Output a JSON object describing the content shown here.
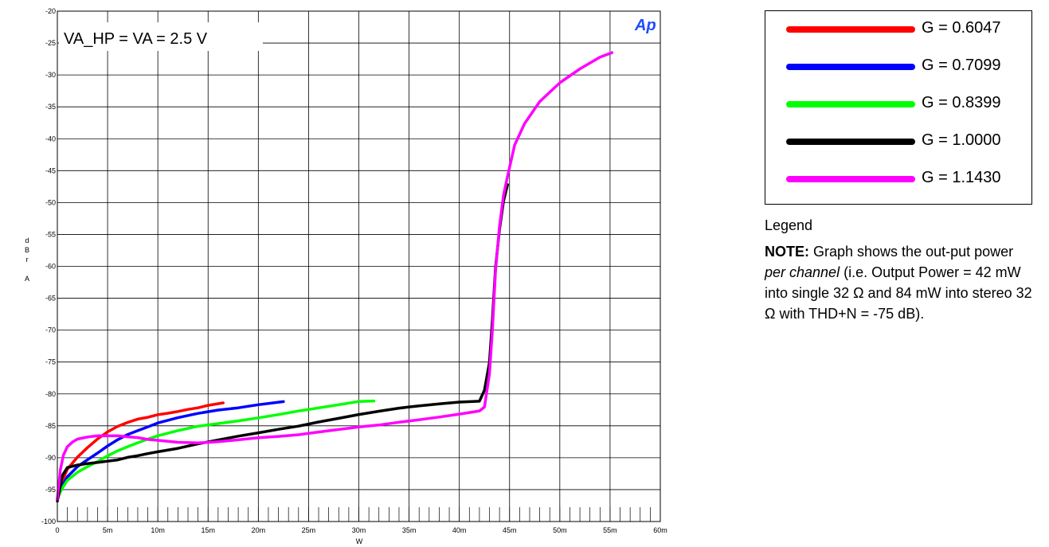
{
  "chart_data": {
    "type": "line",
    "title": "",
    "annotation": "VA_HP = VA = 2.5 V",
    "logo": "Ap",
    "xlabel": "W",
    "ylabel": [
      "d",
      "B",
      "r",
      "",
      "A"
    ],
    "xlim": [
      0,
      0.06
    ],
    "ylim": [
      -100,
      -20
    ],
    "xticks": [
      {
        "value": 0,
        "label": "0"
      },
      {
        "value": 0.005,
        "label": "5m"
      },
      {
        "value": 0.01,
        "label": "10m"
      },
      {
        "value": 0.015,
        "label": "15m"
      },
      {
        "value": 0.02,
        "label": "20m"
      },
      {
        "value": 0.025,
        "label": "25m"
      },
      {
        "value": 0.03,
        "label": "30m"
      },
      {
        "value": 0.035,
        "label": "35m"
      },
      {
        "value": 0.04,
        "label": "40m"
      },
      {
        "value": 0.045,
        "label": "45m"
      },
      {
        "value": 0.05,
        "label": "50m"
      },
      {
        "value": 0.055,
        "label": "55m"
      },
      {
        "value": 0.06,
        "label": "60m"
      }
    ],
    "yticks": [
      {
        "value": -20,
        "label": "-20"
      },
      {
        "value": -25,
        "label": "-25"
      },
      {
        "value": -30,
        "label": "-30"
      },
      {
        "value": -35,
        "label": "-35"
      },
      {
        "value": -40,
        "label": "-40"
      },
      {
        "value": -45,
        "label": "-45"
      },
      {
        "value": -50,
        "label": "-50"
      },
      {
        "value": -55,
        "label": "-55"
      },
      {
        "value": -60,
        "label": "-60"
      },
      {
        "value": -65,
        "label": "-65"
      },
      {
        "value": -70,
        "label": "-70"
      },
      {
        "value": -75,
        "label": "-75"
      },
      {
        "value": -80,
        "label": "-80"
      },
      {
        "value": -85,
        "label": "-85"
      },
      {
        "value": -90,
        "label": "-90"
      },
      {
        "value": -95,
        "label": "-95"
      },
      {
        "value": -100,
        "label": "-100"
      }
    ],
    "grid": true,
    "legend_placement": "right",
    "series": [
      {
        "name": "G = 0.6047",
        "color": "#ff0000",
        "x": [
          0,
          0.0005,
          0.001,
          0.002,
          0.003,
          0.004,
          0.005,
          0.006,
          0.007,
          0.008,
          0.009,
          0.01,
          0.011,
          0.012,
          0.013,
          0.014,
          0.015,
          0.0165
        ],
        "y": [
          -96.5,
          -93.5,
          -91.8,
          -90,
          -88.6,
          -87.3,
          -86.2,
          -85.3,
          -84.6,
          -84,
          -83.6,
          -83.1,
          -82.8,
          -82.5,
          -82.2,
          -82,
          -81.7,
          -81.4
        ]
      },
      {
        "name": "G = 0.7099",
        "color": "#0000ff",
        "x": [
          0,
          0.0005,
          0.001,
          0.002,
          0.003,
          0.004,
          0.005,
          0.006,
          0.007,
          0.008,
          0.009,
          0.01,
          0.012,
          0.014,
          0.016,
          0.018,
          0.02,
          0.0225
        ],
        "y": [
          -96.5,
          -94.3,
          -93,
          -91.5,
          -90.5,
          -89.5,
          -88.4,
          -87.4,
          -86.5,
          -85.8,
          -85.1,
          -84.4,
          -83.5,
          -82.8,
          -82.3,
          -82,
          -81.6,
          -81.2
        ]
      },
      {
        "name": "G = 0.8399",
        "color": "#00ff00",
        "x": [
          0,
          0.0005,
          0.001,
          0.002,
          0.003,
          0.004,
          0.005,
          0.006,
          0.007,
          0.008,
          0.009,
          0.01,
          0.012,
          0.014,
          0.016,
          0.018,
          0.02,
          0.022,
          0.024,
          0.026,
          0.028,
          0.03,
          0.0315
        ],
        "y": [
          -96.3,
          -94.5,
          -93.3,
          -92.1,
          -91.3,
          -90.6,
          -89.8,
          -89.1,
          -88.5,
          -87.9,
          -87.3,
          -86.7,
          -85.8,
          -85,
          -84.5,
          -84,
          -83.5,
          -83,
          -82.5,
          -82.1,
          -81.7,
          -81.3,
          -81.1
        ]
      },
      {
        "name": "G = 1.0000",
        "color": "#000000",
        "x": [
          0,
          0.0005,
          0.001,
          0.002,
          0.003,
          0.004,
          0.005,
          0.006,
          0.007,
          0.008,
          0.009,
          0.01,
          0.012,
          0.014,
          0.016,
          0.018,
          0.02,
          0.022,
          0.024,
          0.026,
          0.028,
          0.03,
          0.032,
          0.034,
          0.036,
          0.038,
          0.04,
          0.042,
          0.0425,
          0.043,
          0.0433,
          0.0436,
          0.044,
          0.0444,
          0.0448
        ],
        "y": [
          -96.8,
          -92.6,
          -91.3,
          -90.9,
          -90.7,
          -90.6,
          -90.5,
          -90.4,
          -90.1,
          -89.9,
          -89.6,
          -89.3,
          -88.7,
          -87.9,
          -87.2,
          -86.5,
          -85.9,
          -85.3,
          -84.8,
          -84.2,
          -83.7,
          -83.2,
          -82.8,
          -82.4,
          -82.1,
          -81.8,
          -81.5,
          -81.3,
          -79.5,
          -75,
          -68,
          -60,
          -54,
          -49.5,
          -47.2
        ]
      },
      {
        "name": "G = 1.1430",
        "color": "#ff00ff",
        "x": [
          0,
          0.0003,
          0.0006,
          0.001,
          0.0015,
          0.002,
          0.003,
          0.004,
          0.005,
          0.006,
          0.007,
          0.008,
          0.009,
          0.01,
          0.012,
          0.014,
          0.016,
          0.018,
          0.02,
          0.022,
          0.024,
          0.026,
          0.028,
          0.03,
          0.032,
          0.034,
          0.036,
          0.038,
          0.04,
          0.042,
          0.0425,
          0.043,
          0.0433,
          0.0436,
          0.044,
          0.0444,
          0.0448,
          0.0455,
          0.0465,
          0.048,
          0.05,
          0.052,
          0.054,
          0.0552
        ],
        "y": [
          -96.5,
          -92,
          -89.8,
          -88.5,
          -87.8,
          -87.3,
          -86.9,
          -86.6,
          -86.5,
          -86.4,
          -86.5,
          -86.6,
          -86.9,
          -87.1,
          -87.5,
          -87.7,
          -87.6,
          -87.4,
          -87.1,
          -86.9,
          -86.6,
          -86.1,
          -85.6,
          -85.1,
          -84.7,
          -84.2,
          -83.8,
          -83.4,
          -83,
          -82.6,
          -82.1,
          -77,
          -70,
          -61,
          -54,
          -49,
          -46,
          -41,
          -37.5,
          -34,
          -31,
          -28.8,
          -27,
          -26.5
        ]
      }
    ]
  },
  "legend": {
    "title": "Legend",
    "items": [
      {
        "label": "G = 0.6047",
        "color": "#ff0000"
      },
      {
        "label": "G = 0.7099",
        "color": "#0000ff"
      },
      {
        "label": "G = 0.8399",
        "color": "#00ff00"
      },
      {
        "label": "G = 1.0000",
        "color": "#000000"
      },
      {
        "label": "G = 1.1430",
        "color": "#ff00ff"
      }
    ]
  },
  "note": {
    "bold": "NOTE:",
    "part1": " Graph shows the out-put power ",
    "italic": "per channel",
    "part2": " (i.e. Output Power = 42 mW into single 32 Ω and 84 mW into stereo 32 Ω with THD+N = -75 dB)."
  }
}
